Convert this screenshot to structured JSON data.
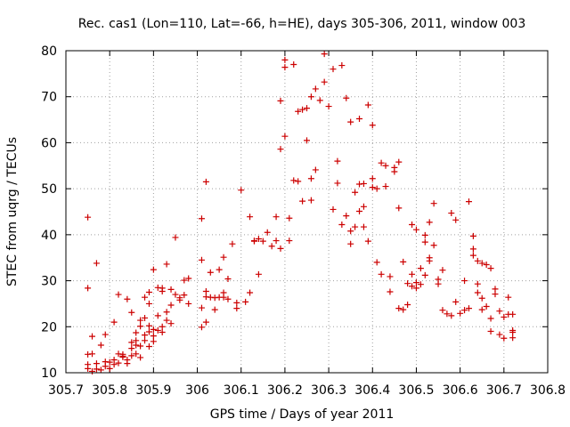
{
  "chart_data": {
    "type": "scatter",
    "title": "Rec. cas1 (Lon=110, Lat=-66, h=HE), days 305-306, 2011, window 003",
    "xlabel": "GPS time / Days of year 2011",
    "ylabel": "STEC from uqrg / TECUs",
    "xlim": [
      305.7,
      306.8
    ],
    "ylim": [
      10,
      80
    ],
    "xticks": [
      "305.7",
      "305.8",
      "305.9",
      "306",
      "306.1",
      "306.2",
      "306.3",
      "306.4",
      "306.5",
      "306.6",
      "306.7",
      "306.8"
    ],
    "yticks": [
      "10",
      "20",
      "30",
      "40",
      "50",
      "60",
      "70",
      "80"
    ],
    "grid": true,
    "marker": "+",
    "color": "#cc0000",
    "series": [
      {
        "name": "STEC",
        "points": [
          [
            305.75,
            43.8
          ],
          [
            305.75,
            28.4
          ],
          [
            305.75,
            14.0
          ],
          [
            305.75,
            11.8
          ],
          [
            305.75,
            10.9
          ],
          [
            305.76,
            10.3
          ],
          [
            305.76,
            14.1
          ],
          [
            305.76,
            17.9
          ],
          [
            305.77,
            33.8
          ],
          [
            305.77,
            10.8
          ],
          [
            305.77,
            12.0
          ],
          [
            305.78,
            16.0
          ],
          [
            305.78,
            10.6
          ],
          [
            305.79,
            11.4
          ],
          [
            305.79,
            12.4
          ],
          [
            305.79,
            18.3
          ],
          [
            305.8,
            10.9
          ],
          [
            305.8,
            12.3
          ],
          [
            305.81,
            21.0
          ],
          [
            305.81,
            12.8
          ],
          [
            305.81,
            11.8
          ],
          [
            305.82,
            12.1
          ],
          [
            305.82,
            14.1
          ],
          [
            305.82,
            27.0
          ],
          [
            305.83,
            13.4
          ],
          [
            305.83,
            14.0
          ],
          [
            305.83,
            13.6
          ],
          [
            305.84,
            26.0
          ],
          [
            305.84,
            12.0
          ],
          [
            305.84,
            12.8
          ],
          [
            305.85,
            13.7
          ],
          [
            305.85,
            15.3
          ],
          [
            305.85,
            16.6
          ],
          [
            305.85,
            23.1
          ],
          [
            305.86,
            14.1
          ],
          [
            305.86,
            16.0
          ],
          [
            305.86,
            17.0
          ],
          [
            305.86,
            18.7
          ],
          [
            305.87,
            15.8
          ],
          [
            305.87,
            20.1
          ],
          [
            305.87,
            21.4
          ],
          [
            305.87,
            13.3
          ],
          [
            305.88,
            17.0
          ],
          [
            305.88,
            18.2
          ],
          [
            305.88,
            21.9
          ],
          [
            305.88,
            26.4
          ],
          [
            305.89,
            15.7
          ],
          [
            305.89,
            18.9
          ],
          [
            305.89,
            20.2
          ],
          [
            305.89,
            25.0
          ],
          [
            305.89,
            27.5
          ],
          [
            305.9,
            16.8
          ],
          [
            305.9,
            18.0
          ],
          [
            305.9,
            19.4
          ],
          [
            305.9,
            32.4
          ],
          [
            305.91,
            19.2
          ],
          [
            305.91,
            22.4
          ],
          [
            305.91,
            28.5
          ],
          [
            305.92,
            18.8
          ],
          [
            305.92,
            20.0
          ],
          [
            305.92,
            27.7
          ],
          [
            305.92,
            28.4
          ],
          [
            305.93,
            21.4
          ],
          [
            305.93,
            23.2
          ],
          [
            305.93,
            33.6
          ],
          [
            305.94,
            20.7
          ],
          [
            305.94,
            24.7
          ],
          [
            305.94,
            28.1
          ],
          [
            305.95,
            27.0
          ],
          [
            305.95,
            39.4
          ],
          [
            305.96,
            26.3
          ],
          [
            305.96,
            25.8
          ],
          [
            305.97,
            26.9
          ],
          [
            305.97,
            30.1
          ],
          [
            305.98,
            30.5
          ],
          [
            305.98,
            25.0
          ],
          [
            306.01,
            24.1
          ],
          [
            306.01,
            43.5
          ],
          [
            306.01,
            34.5
          ],
          [
            306.01,
            19.9
          ],
          [
            306.02,
            27.7
          ],
          [
            306.02,
            26.5
          ],
          [
            306.02,
            51.5
          ],
          [
            306.02,
            21.0
          ],
          [
            306.03,
            26.4
          ],
          [
            306.03,
            31.8
          ],
          [
            306.04,
            26.3
          ],
          [
            306.04,
            23.7
          ],
          [
            306.05,
            32.4
          ],
          [
            306.05,
            26.4
          ],
          [
            306.06,
            27.4
          ],
          [
            306.06,
            35.1
          ],
          [
            306.06,
            26.4
          ],
          [
            306.07,
            30.4
          ],
          [
            306.07,
            26.0
          ],
          [
            306.08,
            38.0
          ],
          [
            306.09,
            24.0
          ],
          [
            306.09,
            25.2
          ],
          [
            306.1,
            49.7
          ],
          [
            306.11,
            25.4
          ],
          [
            306.12,
            43.9
          ],
          [
            306.12,
            27.4
          ],
          [
            306.13,
            38.6
          ],
          [
            306.13,
            38.7
          ],
          [
            306.14,
            31.4
          ],
          [
            306.14,
            39.1
          ],
          [
            306.15,
            38.6
          ],
          [
            306.16,
            40.5
          ],
          [
            306.17,
            37.5
          ],
          [
            306.18,
            43.9
          ],
          [
            306.18,
            38.7
          ],
          [
            306.19,
            58.6
          ],
          [
            306.19,
            69.1
          ],
          [
            306.19,
            37.0
          ],
          [
            306.2,
            78.0
          ],
          [
            306.2,
            76.4
          ],
          [
            306.2,
            61.4
          ],
          [
            306.21,
            38.7
          ],
          [
            306.21,
            43.6
          ],
          [
            306.22,
            77.0
          ],
          [
            306.22,
            51.8
          ],
          [
            306.23,
            51.6
          ],
          [
            306.23,
            66.8
          ],
          [
            306.24,
            67.2
          ],
          [
            306.24,
            47.3
          ],
          [
            306.25,
            60.5
          ],
          [
            306.25,
            67.5
          ],
          [
            306.26,
            47.5
          ],
          [
            306.26,
            70.0
          ],
          [
            306.26,
            52.2
          ],
          [
            306.27,
            54.1
          ],
          [
            306.27,
            71.7
          ],
          [
            306.28,
            69.2
          ],
          [
            306.29,
            79.3
          ],
          [
            306.29,
            73.2
          ],
          [
            306.3,
            67.9
          ],
          [
            306.31,
            45.5
          ],
          [
            306.31,
            76.0
          ],
          [
            306.32,
            56.0
          ],
          [
            306.32,
            51.2
          ],
          [
            306.33,
            76.8
          ],
          [
            306.33,
            42.2
          ],
          [
            306.34,
            69.7
          ],
          [
            306.34,
            44.1
          ],
          [
            306.35,
            40.8
          ],
          [
            306.35,
            38.0
          ],
          [
            306.35,
            64.5
          ],
          [
            306.36,
            49.2
          ],
          [
            306.36,
            41.7
          ],
          [
            306.37,
            51.0
          ],
          [
            306.37,
            45.1
          ],
          [
            306.37,
            65.2
          ],
          [
            306.38,
            51.1
          ],
          [
            306.38,
            41.7
          ],
          [
            306.38,
            46.1
          ],
          [
            306.39,
            38.6
          ],
          [
            306.39,
            68.2
          ],
          [
            306.4,
            52.2
          ],
          [
            306.4,
            50.3
          ],
          [
            306.4,
            63.8
          ],
          [
            306.41,
            34.0
          ],
          [
            306.41,
            50.0
          ],
          [
            306.42,
            55.6
          ],
          [
            306.42,
            31.4
          ],
          [
            306.43,
            55.0
          ],
          [
            306.43,
            50.5
          ],
          [
            306.44,
            30.9
          ],
          [
            306.44,
            27.6
          ],
          [
            306.45,
            54.6
          ],
          [
            306.45,
            53.7
          ],
          [
            306.46,
            55.8
          ],
          [
            306.46,
            45.8
          ],
          [
            306.46,
            24.0
          ],
          [
            306.47,
            23.7
          ],
          [
            306.47,
            34.1
          ],
          [
            306.48,
            29.4
          ],
          [
            306.48,
            24.8
          ],
          [
            306.49,
            31.4
          ],
          [
            306.49,
            28.8
          ],
          [
            306.49,
            42.2
          ],
          [
            306.5,
            29.6
          ],
          [
            306.5,
            28.4
          ],
          [
            306.5,
            41.1
          ],
          [
            306.51,
            32.7
          ],
          [
            306.51,
            29.2
          ],
          [
            306.52,
            38.4
          ],
          [
            306.52,
            39.9
          ],
          [
            306.52,
            31.2
          ],
          [
            306.53,
            42.7
          ],
          [
            306.53,
            35.0
          ],
          [
            306.53,
            34.3
          ],
          [
            306.54,
            46.8
          ],
          [
            306.54,
            37.7
          ],
          [
            306.55,
            30.3
          ],
          [
            306.55,
            29.3
          ],
          [
            306.56,
            32.3
          ],
          [
            306.56,
            23.6
          ],
          [
            306.57,
            22.8
          ],
          [
            306.58,
            22.4
          ],
          [
            306.58,
            44.7
          ],
          [
            306.59,
            25.4
          ],
          [
            306.59,
            43.2
          ],
          [
            306.6,
            22.9
          ],
          [
            306.61,
            23.6
          ],
          [
            306.61,
            30.0
          ],
          [
            306.62,
            47.2
          ],
          [
            306.62,
            24.0
          ],
          [
            306.63,
            39.7
          ],
          [
            306.63,
            35.5
          ],
          [
            306.63,
            36.9
          ],
          [
            306.64,
            27.4
          ],
          [
            306.64,
            34.3
          ],
          [
            306.64,
            29.3
          ],
          [
            306.65,
            33.8
          ],
          [
            306.65,
            26.2
          ],
          [
            306.65,
            23.7
          ],
          [
            306.66,
            33.5
          ],
          [
            306.66,
            24.4
          ],
          [
            306.67,
            32.7
          ],
          [
            306.67,
            21.8
          ],
          [
            306.67,
            19.0
          ],
          [
            306.68,
            27.1
          ],
          [
            306.68,
            28.2
          ],
          [
            306.69,
            23.4
          ],
          [
            306.69,
            18.3
          ],
          [
            306.7,
            17.5
          ],
          [
            306.7,
            22.1
          ],
          [
            306.71,
            26.4
          ],
          [
            306.71,
            22.7
          ],
          [
            306.72,
            19.2
          ],
          [
            306.72,
            17.6
          ],
          [
            306.72,
            22.7
          ],
          [
            306.72,
            18.8
          ]
        ]
      }
    ]
  }
}
